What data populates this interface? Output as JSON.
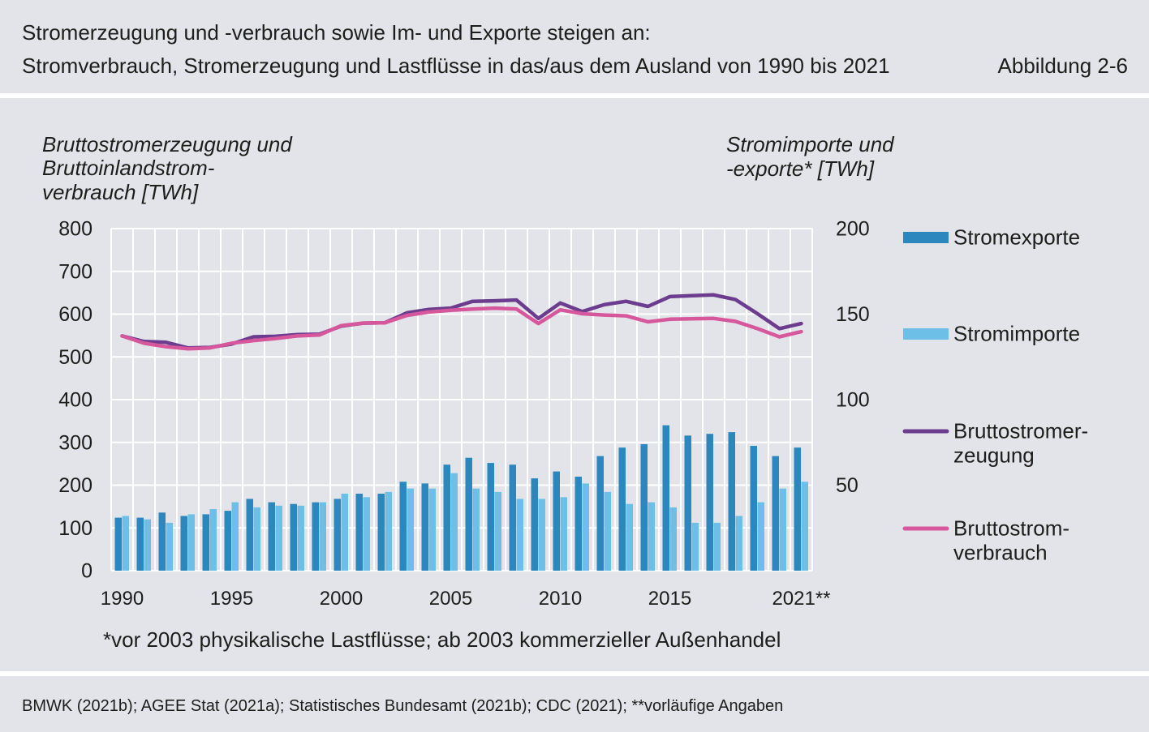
{
  "header": {
    "figure_label": "Abbildung 2-6"
  },
  "chart_data": {
    "type": "bar",
    "title": "Stromerzeugung und -verbrauch sowie Im- und Exporte steigen an:",
    "subtitle": "Stromverbrauch, Stromerzeugung und Lastflüsse in das/aus dem Ausland von 1990 bis 2021",
    "categories": [
      1990,
      1991,
      1992,
      1993,
      1994,
      1995,
      1996,
      1997,
      1998,
      1999,
      2000,
      2001,
      2002,
      2003,
      2004,
      2005,
      2006,
      2007,
      2008,
      2009,
      2010,
      2011,
      2012,
      2013,
      2014,
      2015,
      2016,
      2017,
      2018,
      2019,
      2020,
      2021
    ],
    "x_ticks": [
      {
        "value": 1990,
        "label": "1990"
      },
      {
        "value": 1995,
        "label": "1995"
      },
      {
        "value": 2000,
        "label": "2000"
      },
      {
        "value": 2005,
        "label": "2005"
      },
      {
        "value": 2010,
        "label": "2010"
      },
      {
        "value": 2015,
        "label": "2015"
      },
      {
        "value": 2021,
        "label": "2021**"
      }
    ],
    "ylabel_lines": [
      "Bruttostromerzeugung und",
      "Bruttoinlandstrom-",
      "verbrauch [TWh]"
    ],
    "ylim": [
      0,
      800
    ],
    "y_ticks": [
      0,
      100,
      200,
      300,
      400,
      500,
      600,
      700,
      800
    ],
    "y2label_lines": [
      "Stromimporte und",
      "-exporte* [TWh]"
    ],
    "y2lim": [
      0,
      200
    ],
    "y2_ticks": [
      50,
      100,
      150,
      200
    ],
    "grid": true,
    "legend": "right",
    "series": [
      {
        "name_lines": [
          "Stromexporte"
        ],
        "type": "bar",
        "axis": "right",
        "color": "#2b87bd",
        "values": [
          31,
          31,
          34,
          32,
          33,
          35,
          42,
          40,
          39,
          40,
          42,
          45,
          45,
          52,
          51,
          62,
          66,
          63,
          62,
          54,
          58,
          55,
          67,
          72,
          74,
          85,
          79,
          80,
          81,
          73,
          67,
          72
        ]
      },
      {
        "name_lines": [
          "Stromimporte"
        ],
        "type": "bar",
        "axis": "right",
        "color": "#6dbfe8",
        "values": [
          32,
          30,
          28,
          33,
          36,
          40,
          37,
          38,
          38,
          40,
          45,
          43,
          46,
          48,
          48,
          57,
          48,
          46,
          42,
          42,
          43,
          51,
          46,
          39,
          40,
          37,
          28,
          28,
          32,
          40,
          48,
          52
        ]
      },
      {
        "name_lines": [
          "Bruttostromer-",
          "zeugung"
        ],
        "type": "line",
        "axis": "left",
        "color": "#6c3c8e",
        "values": [
          549,
          536,
          534,
          521,
          522,
          530,
          547,
          548,
          552,
          553,
          572,
          579,
          580,
          603,
          611,
          614,
          630,
          631,
          633,
          590,
          626,
          606,
          622,
          630,
          618,
          641,
          643,
          645,
          634,
          601,
          566,
          578
        ]
      },
      {
        "name_lines": [
          "Bruttostrom-",
          "verbrauch"
        ],
        "type": "line",
        "axis": "left",
        "color": "#d6579b",
        "values": [
          549,
          532,
          524,
          519,
          521,
          532,
          538,
          543,
          549,
          551,
          573,
          579,
          580,
          597,
          605,
          609,
          612,
          614,
          612,
          578,
          610,
          601,
          598,
          596,
          582,
          588,
          589,
          590,
          583,
          566,
          547,
          559
        ]
      }
    ],
    "footnote": "*vor 2003 physikalische Lastflüsse; ab 2003 kommerzieller Außenhandel"
  },
  "footer": {
    "source": "BMWK (2021b); AGEE Stat (2021a); Statistisches Bundesamt (2021b); CDC (2021); **vorläufige Angaben"
  }
}
